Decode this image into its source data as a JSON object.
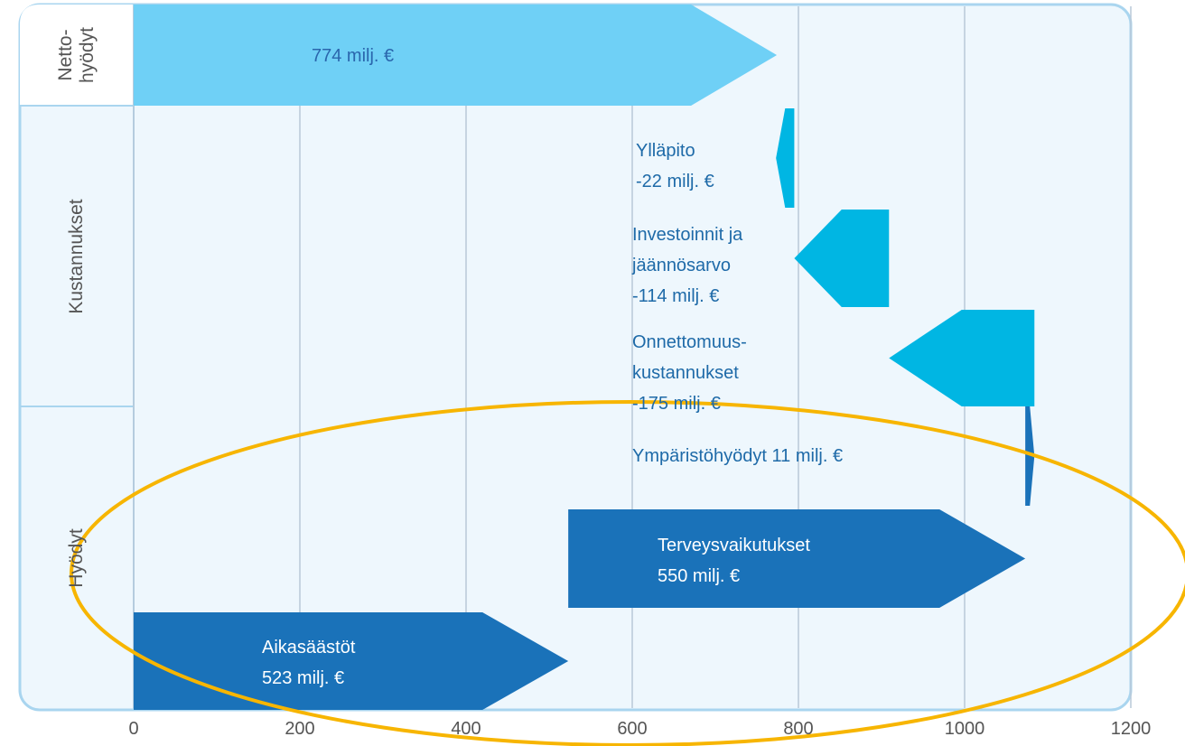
{
  "chart_data": {
    "type": "waterfall",
    "categories": [
      "Aikasäästöt",
      "Terveysvaikutukset",
      "Ympäristöhyödyt",
      "Onnettomuus-kustannukset",
      "Investoinnit ja jäännösarvo",
      "Ylläpito"
    ],
    "values": [
      523,
      550,
      11,
      -175,
      -114,
      -22
    ],
    "value_labels": [
      "523 milj. €",
      "550 milj. €",
      "11 milj. €",
      "-175 milj. €",
      "-114 milj. €",
      "-22 milj. €"
    ],
    "colors": [
      "#1a72b9",
      "#1a72b9",
      "#1a72b9",
      "#00b6e3",
      "#00b6e3",
      "#00b6e3"
    ],
    "total": {
      "value": 774,
      "value_label": "774 milj. €",
      "color": "#6fd0f6"
    },
    "groups": [
      "Netto-hyödyt",
      "Kustannukset",
      "Hyödyt"
    ],
    "xlim": [
      0,
      1200
    ],
    "xticks": [
      0,
      200,
      400,
      600,
      800,
      1000,
      1200
    ],
    "grid": true
  }
}
